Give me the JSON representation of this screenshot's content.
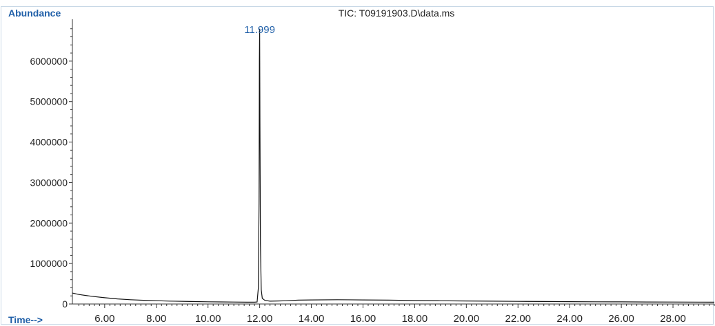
{
  "chart_data": {
    "type": "line",
    "title": "TIC: T09191903.D\\data.ms",
    "ylabel": "Abundance",
    "xlabel": "Time-->",
    "xlim": [
      4.75,
      29.6
    ],
    "ylim": [
      0,
      7000000
    ],
    "xticks": [
      "6.00",
      "8.00",
      "10.00",
      "12.00",
      "14.00",
      "16.00",
      "18.00",
      "20.00",
      "22.00",
      "24.00",
      "26.00",
      "28.00"
    ],
    "yticks": [
      "0",
      "1000000",
      "2000000",
      "3000000",
      "4000000",
      "5000000",
      "6000000"
    ],
    "grid": false,
    "peak_label": "11.999",
    "peak_time": 11.999,
    "series": [
      {
        "color": "#111111",
        "x": [
          4.75,
          5.0,
          5.5,
          6.0,
          6.5,
          7.0,
          7.5,
          8.0,
          8.5,
          9.0,
          9.5,
          10.0,
          10.5,
          11.0,
          11.5,
          11.8,
          11.9,
          11.95,
          11.975,
          11.99,
          11.999,
          12.01,
          12.03,
          12.06,
          12.1,
          12.2,
          12.4,
          12.7,
          13.0,
          13.5,
          14.0,
          15.0,
          16.0,
          17.0,
          18.0,
          19.0,
          20.0,
          21.0,
          22.0,
          23.0,
          24.0,
          25.0,
          26.0,
          27.0,
          28.0,
          29.0,
          29.6
        ],
        "y": [
          270000,
          235000,
          190000,
          155000,
          125000,
          105000,
          92000,
          82000,
          72000,
          66000,
          60000,
          55000,
          51000,
          48000,
          45000,
          44000,
          50000,
          400000,
          2500000,
          6000000,
          6800000,
          4500000,
          1500000,
          350000,
          140000,
          90000,
          70000,
          75000,
          80000,
          95000,
          100000,
          105000,
          100000,
          95000,
          85000,
          80000,
          75000,
          70000,
          65000,
          62000,
          58000,
          55000,
          52000,
          50000,
          48000,
          46000,
          45000
        ]
      }
    ]
  }
}
